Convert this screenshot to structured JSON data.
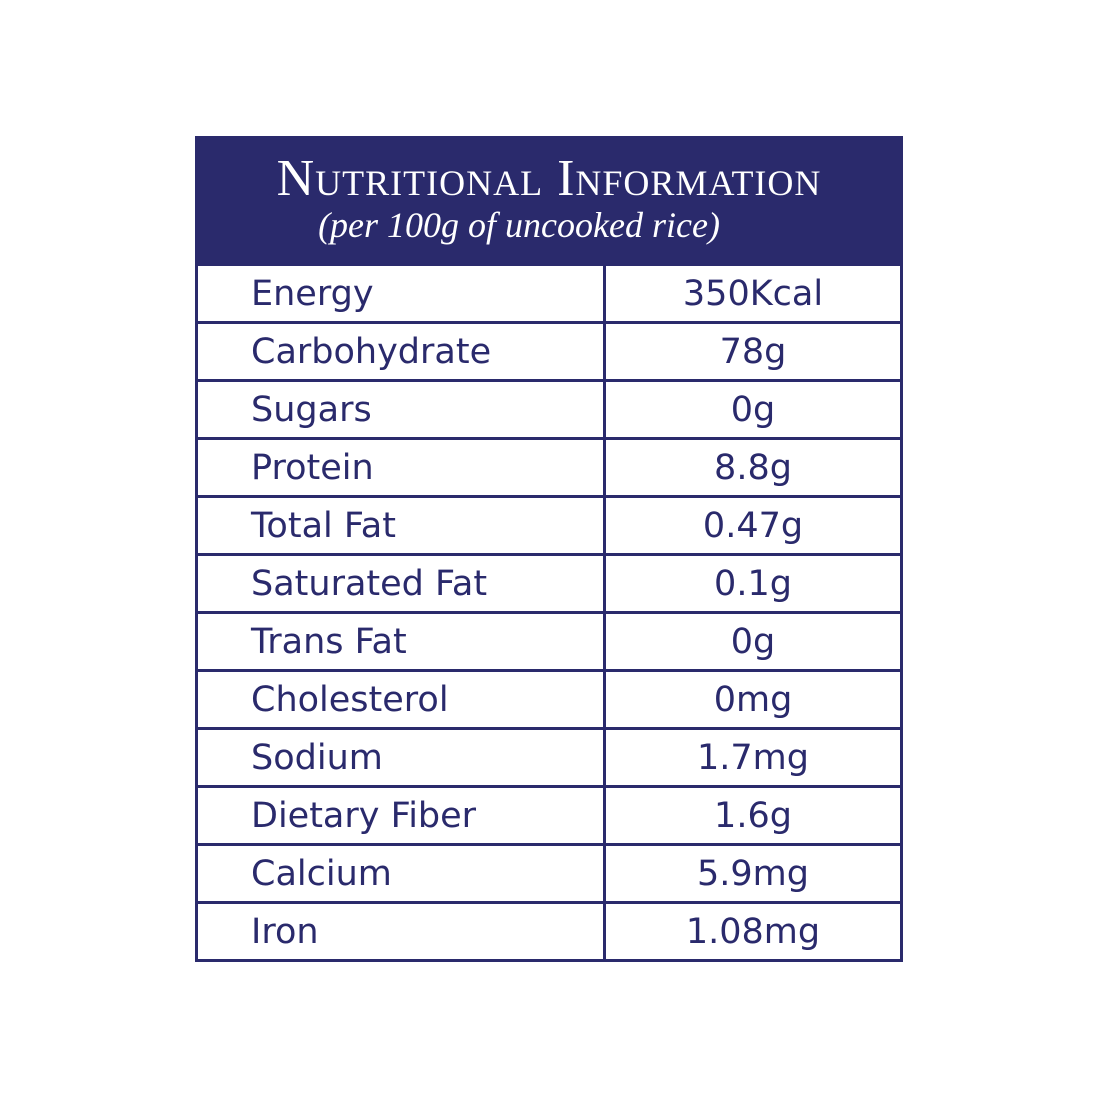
{
  "header": {
    "title": "Nutritional Information",
    "subtitle": "(per 100g of uncooked rice)"
  },
  "table": {
    "rows": [
      [
        "Energy",
        "350Kcal"
      ],
      [
        "Carbohydrate",
        "78g"
      ],
      [
        "Sugars",
        "0g"
      ],
      [
        "Protein",
        "8.8g"
      ],
      [
        "Total Fat",
        "0.47g"
      ],
      [
        "Saturated Fat",
        "0.1g"
      ],
      [
        "Trans Fat",
        "0g"
      ],
      [
        "Cholesterol",
        "0mg"
      ],
      [
        "Sodium",
        "1.7mg"
      ],
      [
        "Dietary Fiber",
        "1.6g"
      ],
      [
        "Calcium",
        "5.9mg"
      ],
      [
        "Iron",
        "1.08mg"
      ]
    ]
  }
}
